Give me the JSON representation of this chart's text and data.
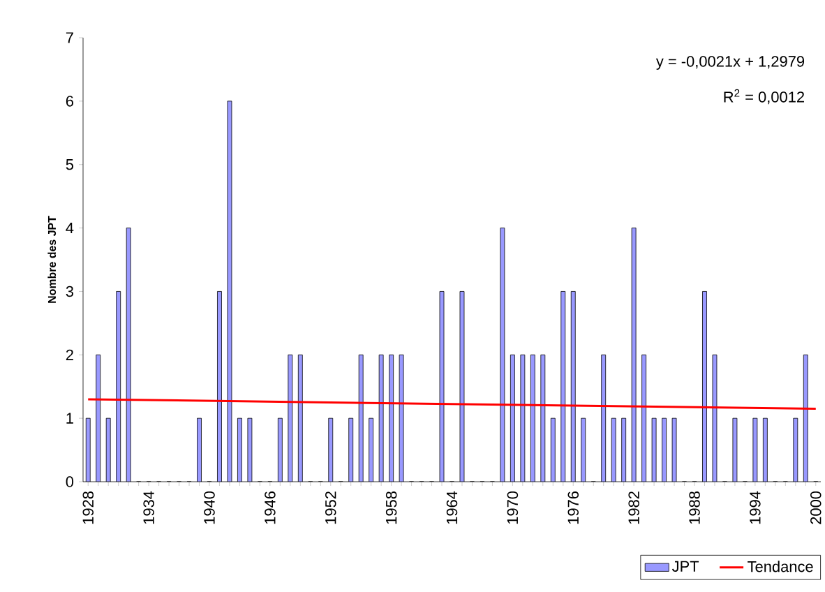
{
  "chart_data": {
    "type": "bar",
    "ylabel": "Nombre des JPT",
    "x": [
      1928,
      1929,
      1930,
      1931,
      1932,
      1933,
      1934,
      1935,
      1936,
      1937,
      1938,
      1939,
      1940,
      1941,
      1942,
      1943,
      1944,
      1945,
      1946,
      1947,
      1948,
      1949,
      1950,
      1951,
      1952,
      1953,
      1954,
      1955,
      1956,
      1957,
      1958,
      1959,
      1960,
      1961,
      1962,
      1963,
      1964,
      1965,
      1966,
      1967,
      1968,
      1969,
      1970,
      1971,
      1972,
      1973,
      1974,
      1975,
      1976,
      1977,
      1978,
      1979,
      1980,
      1981,
      1982,
      1983,
      1984,
      1985,
      1986,
      1987,
      1988,
      1989,
      1990,
      1991,
      1992,
      1993,
      1994,
      1995,
      1996,
      1997,
      1998,
      1999,
      2000
    ],
    "xlim": [
      1927.5,
      2000.5
    ],
    "xticks": [
      1928,
      {
        "value": 1929,
        "label": null
      },
      {
        "value": 1930,
        "label": null
      },
      {
        "value": 1931,
        "label": null
      },
      {
        "value": 1932,
        "label": null
      },
      {
        "value": 1933,
        "label": null
      },
      1934,
      {
        "value": 1935,
        "label": null
      },
      {
        "value": 1936,
        "label": null
      },
      {
        "value": 1937,
        "label": null
      },
      {
        "value": 1938,
        "label": null
      },
      {
        "value": 1939,
        "label": null
      },
      1940,
      {
        "value": 1941,
        "label": null
      },
      {
        "value": 1942,
        "label": null
      },
      {
        "value": 1943,
        "label": null
      },
      {
        "value": 1944,
        "label": null
      },
      {
        "value": 1945,
        "label": null
      },
      1946,
      {
        "value": 1947,
        "label": null
      },
      {
        "value": 1948,
        "label": null
      },
      {
        "value": 1949,
        "label": null
      },
      {
        "value": 1950,
        "label": null
      },
      {
        "value": 1951,
        "label": null
      },
      1952,
      {
        "value": 1953,
        "label": null
      },
      {
        "value": 1954,
        "label": null
      },
      {
        "value": 1955,
        "label": null
      },
      {
        "value": 1956,
        "label": null
      },
      {
        "value": 1957,
        "label": null
      },
      1958,
      {
        "value": 1959,
        "label": null
      },
      {
        "value": 1960,
        "label": null
      },
      {
        "value": 1961,
        "label": null
      },
      {
        "value": 1962,
        "label": null
      },
      {
        "value": 1963,
        "label": null
      },
      1964,
      {
        "value": 1965,
        "label": null
      },
      {
        "value": 1966,
        "label": null
      },
      {
        "value": 1967,
        "label": null
      },
      {
        "value": 1968,
        "label": null
      },
      {
        "value": 1969,
        "label": null
      },
      1970,
      {
        "value": 1971,
        "label": null
      },
      {
        "value": 1972,
        "label": null
      },
      {
        "value": 1973,
        "label": null
      },
      {
        "value": 1974,
        "label": null
      },
      {
        "value": 1975,
        "label": null
      },
      1976,
      {
        "value": 1977,
        "label": null
      },
      {
        "value": 1978,
        "label": null
      },
      {
        "value": 1979,
        "label": null
      },
      {
        "value": 1980,
        "label": null
      },
      {
        "value": 1981,
        "label": null
      },
      1982,
      {
        "value": 1983,
        "label": null
      },
      {
        "value": 1984,
        "label": null
      },
      {
        "value": 1985,
        "label": null
      },
      {
        "value": 1986,
        "label": null
      },
      {
        "value": 1987,
        "label": null
      },
      1988,
      {
        "value": 1989,
        "label": null
      },
      {
        "value": 1990,
        "label": null
      },
      {
        "value": 1991,
        "label": null
      },
      {
        "value": 1992,
        "label": null
      },
      {
        "value": 1993,
        "label": null
      },
      1994,
      {
        "value": 1995,
        "label": null
      },
      {
        "value": 1996,
        "label": null
      },
      {
        "value": 1997,
        "label": null
      },
      {
        "value": 1998,
        "label": null
      },
      {
        "value": 1999,
        "label": null
      },
      2000
    ],
    "series": [
      {
        "name": "JPT",
        "color": "#9999ff",
        "values": [
          1,
          2,
          1,
          3,
          4,
          0,
          0,
          0,
          0,
          0,
          0,
          1,
          0,
          3,
          6,
          1,
          1,
          0,
          0,
          1,
          2,
          2,
          0,
          0,
          1,
          0,
          1,
          2,
          1,
          2,
          2,
          2,
          0,
          0,
          0,
          3,
          0,
          3,
          0,
          0,
          0,
          4,
          2,
          2,
          2,
          2,
          1,
          3,
          3,
          1,
          0,
          2,
          1,
          1,
          4,
          2,
          1,
          1,
          1,
          0,
          0,
          3,
          2,
          0,
          1,
          0,
          1,
          1,
          0,
          0,
          1,
          2,
          0
        ]
      },
      {
        "name": "Tendance",
        "type": "line",
        "color": "#ff0000",
        "x": [
          1928,
          2000
        ],
        "values": [
          1.3,
          1.15
        ]
      }
    ],
    "ylim": [
      0,
      7
    ],
    "yticks": [
      0,
      1,
      2,
      3,
      4,
      5,
      6,
      7
    ],
    "annotations": [
      "y = -0,0021x + 1,2979",
      "R$^{2}$ = 0,0012"
    ],
    "legend": "bottom right",
    "grid": false
  }
}
